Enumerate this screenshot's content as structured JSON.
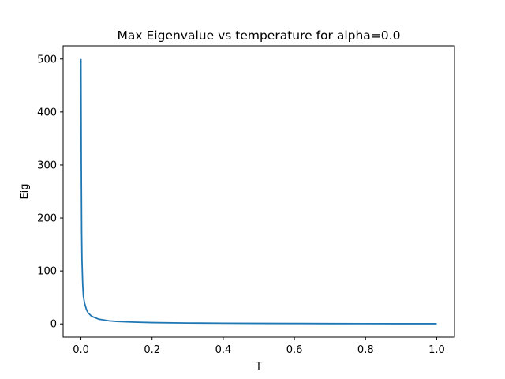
{
  "chart_data": {
    "type": "line",
    "title": "Max Eigenvalue vs temperature for alpha=0.0",
    "xlabel": "T",
    "ylabel": "Eig",
    "xlim": [
      -0.05,
      1.05
    ],
    "ylim": [
      -25,
      525
    ],
    "xticks": [
      0.0,
      0.2,
      0.4,
      0.6,
      0.8,
      1.0
    ],
    "xtick_labels": [
      "0.0",
      "0.2",
      "0.4",
      "0.6",
      "0.8",
      "1.0"
    ],
    "yticks": [
      0,
      100,
      200,
      300,
      400,
      500
    ],
    "ytick_labels": [
      "0",
      "100",
      "200",
      "300",
      "400",
      "500"
    ],
    "grid": false,
    "series": [
      {
        "color": "#1f77b4",
        "x": [
          0.0,
          0.001,
          0.002,
          0.003,
          0.005,
          0.007,
          0.01,
          0.015,
          0.02,
          0.03,
          0.05,
          0.08,
          0.1,
          0.15,
          0.2,
          0.3,
          0.4,
          0.5,
          0.6,
          0.7,
          0.8,
          0.9,
          1.0
        ],
        "y": [
          500,
          300,
          175,
          120,
          75,
          52,
          40,
          28,
          21,
          14.5,
          9,
          5.8,
          4.7,
          3.3,
          2.5,
          1.7,
          1.3,
          1.0,
          0.8,
          0.65,
          0.55,
          0.45,
          0.4
        ]
      }
    ]
  }
}
